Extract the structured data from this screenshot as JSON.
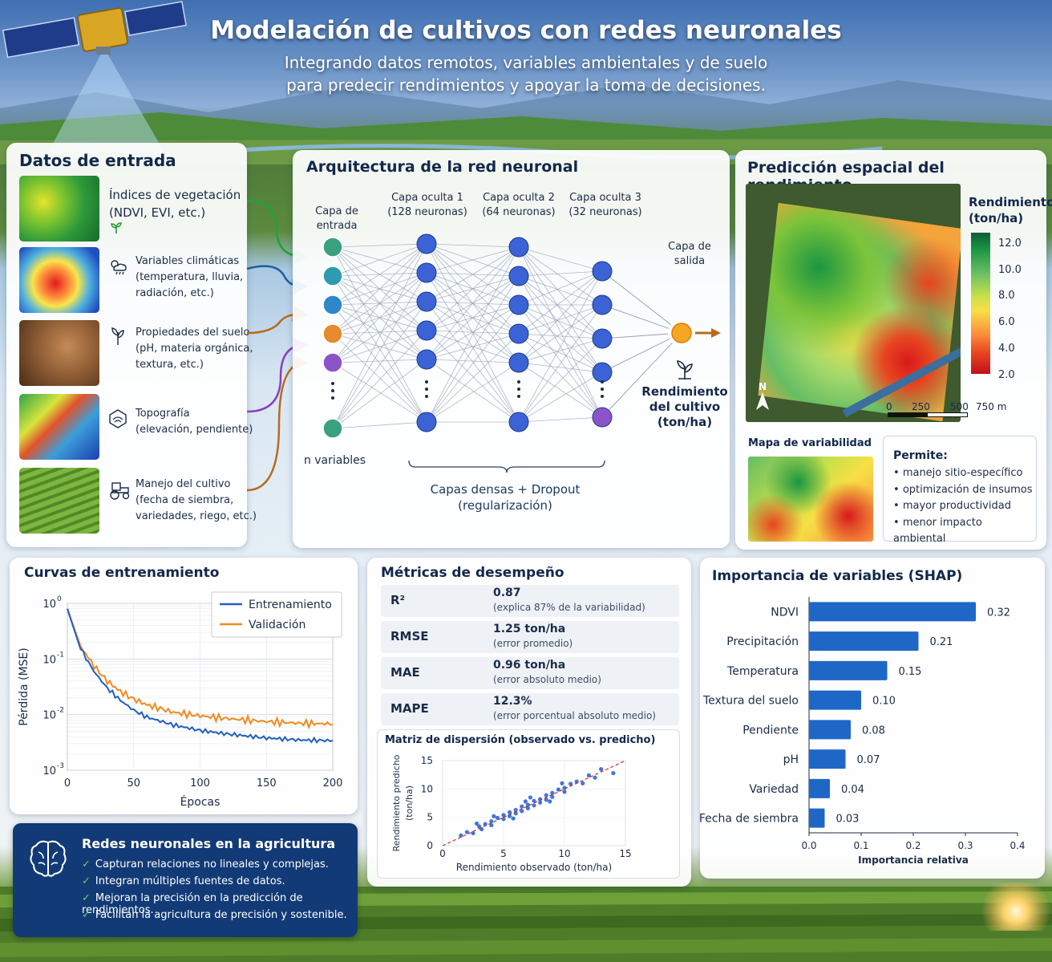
{
  "header": {
    "title": "Modelación de cultivos con redes neuronales",
    "subtitle_line1": "Integrando datos remotos, variables ambientales y de suelo",
    "subtitle_line2": "para predecir rendimientos y apoyar la toma de decisiones."
  },
  "inputs": {
    "title": "Datos de entrada",
    "items": [
      {
        "line1": "Índices de vegetación",
        "line2": "(NDVI, EVI, etc.)",
        "line3": "",
        "icon": "sprout-icon"
      },
      {
        "line1": "Variables climáticas",
        "line2": "(temperatura, lluvia,",
        "line3": "radiación, etc.)",
        "icon": "cloud-sun-rain-icon"
      },
      {
        "line1": "Propiedades del suelo",
        "line2": "(pH, materia orgánica,",
        "line3": "textura, etc.)",
        "icon": "leaf-icon"
      },
      {
        "line1": "Topografía",
        "line2": "(elevación, pendiente)",
        "line3": "",
        "icon": "topography-icon"
      },
      {
        "line1": "Manejo del cultivo",
        "line2": "(fecha de siembra,",
        "line3": "variedades, riego, etc.)",
        "icon": "tractor-icon"
      }
    ]
  },
  "architecture": {
    "title": "Arquitectura de la red neuronal",
    "input_layer_line1": "Capa de",
    "input_layer_line2": "entrada",
    "hidden1_line1": "Capa oculta 1",
    "hidden1_line2": "(128 neuronas)",
    "hidden2_line1": "Capa oculta 2",
    "hidden2_line2": "(64 neuronas)",
    "hidden3_line1": "Capa oculta 3",
    "hidden3_line2": "(32 neuronas)",
    "output_line1": "Capa de",
    "output_line2": "salida",
    "n_variables": "n variables",
    "dense_line1": "Capas densas + Dropout",
    "dense_line2": "(regularización)",
    "result_line1": "Rendimiento",
    "result_line2": "del cultivo",
    "result_line3": "(ton/ha)",
    "colors": {
      "input": [
        "#3aa17e",
        "#2f9bb1",
        "#2f86c9",
        "#e58a2e",
        "#8b55c9"
      ],
      "hidden": "#3b63d6",
      "last_hidden": "#8b55c9",
      "output": "#f5a623"
    }
  },
  "spatial": {
    "title": "Predicción espacial del rendimiento",
    "legend_title_line1": "Rendimiento",
    "legend_title_line2": "(ton/ha)",
    "legend_ticks": [
      "12.0",
      "10.0",
      "8.0",
      "6.0",
      "4.0",
      "2.0"
    ],
    "north": "N",
    "scale_ticks": [
      "0",
      "250",
      "500",
      "750 m"
    ],
    "variability_title": "Mapa de variabilidad",
    "allows_title": "Permite:",
    "allows_items": [
      "manejo sitio-específico",
      "optimización de insumos",
      "mayor productividad",
      "menor impacto ambiental"
    ]
  },
  "training": {
    "title": "Curvas de entrenamiento",
    "legend": [
      "Entrenamiento",
      "Validación"
    ],
    "ylabel": "Pérdida (MSE)",
    "xlabel": "Épocas",
    "xticks": [
      "0",
      "50",
      "100",
      "150",
      "200"
    ],
    "yticks": [
      {
        "base": "10",
        "exp": "0"
      },
      {
        "base": "10",
        "exp": "-1"
      },
      {
        "base": "10",
        "exp": "-2"
      },
      {
        "base": "10",
        "exp": "-3"
      }
    ],
    "colors": {
      "train": "#1f5fbf",
      "val": "#f28a1c"
    }
  },
  "metrics": {
    "title": "Métricas de desempeño",
    "rows": [
      {
        "key": "R²",
        "value": "0.87",
        "desc": "(explica 87% de la variabilidad)"
      },
      {
        "key": "RMSE",
        "value": "1.25 ton/ha",
        "desc": "(error promedio)"
      },
      {
        "key": "MAE",
        "value": "0.96 ton/ha",
        "desc": "(error absoluto medio)"
      },
      {
        "key": "MAPE",
        "value": "12.3%",
        "desc": "(error porcentual absoluto medio)"
      }
    ],
    "scatter_title": "Matriz de dispersión (observado vs. predicho)",
    "scatter_ylabel_line1": "Rendimiento predicho",
    "scatter_ylabel_line2": "(ton/ha)",
    "scatter_xlabel": "Rendimiento observado (ton/ha)",
    "scatter_ticks": [
      "0",
      "5",
      "10",
      "15"
    ]
  },
  "shap": {
    "title": "Importancia de variables (SHAP)",
    "xlabel": "Importancia relativa",
    "xticks": [
      "0.0",
      "0.1",
      "0.2",
      "0.3",
      "0.4"
    ]
  },
  "summary": {
    "title": "Redes neuronales en la agricultura",
    "items": [
      "Capturan relaciones no lineales y complejas.",
      "Integran múltiples fuentes de datos.",
      "Mejoran la precisión en la predicción de rendimientos.",
      "Facilitan la agricultura de precisión y sostenible."
    ]
  },
  "chart_data": [
    {
      "type": "line",
      "title": "Curvas de entrenamiento",
      "xlabel": "Épocas",
      "ylabel": "Pérdida (MSE)",
      "xlim": [
        0,
        200
      ],
      "ylim": [
        0.001,
        1
      ],
      "yscale": "log",
      "legend": "top-right",
      "x": [
        0,
        10,
        20,
        30,
        40,
        50,
        60,
        80,
        100,
        120,
        150,
        175,
        200
      ],
      "series": [
        {
          "name": "Entrenamiento",
          "values": [
            0.8,
            0.15,
            0.06,
            0.03,
            0.018,
            0.012,
            0.009,
            0.0065,
            0.0052,
            0.0045,
            0.0038,
            0.0035,
            0.0034
          ]
        },
        {
          "name": "Validación",
          "values": [
            0.8,
            0.17,
            0.075,
            0.04,
            0.026,
            0.019,
            0.015,
            0.011,
            0.0095,
            0.0085,
            0.0075,
            0.007,
            0.0068
          ]
        }
      ]
    },
    {
      "type": "bar",
      "orientation": "horizontal",
      "title": "Importancia de variables (SHAP)",
      "xlabel": "Importancia relativa",
      "xlim": [
        0,
        0.4
      ],
      "categories": [
        "NDVI",
        "Precipitación",
        "Temperatura",
        "Textura del suelo",
        "Pendiente",
        "pH",
        "Variedad",
        "Fecha de siembra"
      ],
      "values": [
        0.32,
        0.21,
        0.15,
        0.1,
        0.08,
        0.07,
        0.04,
        0.03
      ],
      "value_labels": [
        "0.32",
        "0.21",
        "0.15",
        "0.10",
        "0.08",
        "0.07",
        "0.04",
        "0.03"
      ]
    },
    {
      "type": "scatter",
      "title": "Matriz de dispersión (observado vs. predicho)",
      "xlabel": "Rendimiento observado (ton/ha)",
      "ylabel": "Rendimiento predicho (ton/ha)",
      "xlim": [
        0,
        15
      ],
      "ylim": [
        0,
        15
      ],
      "reference_line": "1:1",
      "points": [
        [
          1.5,
          1.8
        ],
        [
          2,
          2.4
        ],
        [
          2.5,
          2.2
        ],
        [
          3,
          3.4
        ],
        [
          3.2,
          2.9
        ],
        [
          3.5,
          3.8
        ],
        [
          4,
          4.3
        ],
        [
          4,
          3.6
        ],
        [
          4.5,
          4.9
        ],
        [
          5,
          4.7
        ],
        [
          5,
          5.4
        ],
        [
          5.5,
          5.9
        ],
        [
          5.5,
          5.2
        ],
        [
          6,
          6.3
        ],
        [
          6,
          5.7
        ],
        [
          6.5,
          6.9
        ],
        [
          6.5,
          6.1
        ],
        [
          7,
          7.2
        ],
        [
          7,
          6.6
        ],
        [
          7.5,
          7.9
        ],
        [
          7.5,
          7.1
        ],
        [
          8,
          8.2
        ],
        [
          8,
          7.6
        ],
        [
          8.5,
          8.9
        ],
        [
          8.5,
          8.1
        ],
        [
          9,
          9.3
        ],
        [
          9,
          8.6
        ],
        [
          9.5,
          9.9
        ],
        [
          10,
          10.2
        ],
        [
          10,
          9.5
        ],
        [
          10.5,
          10.9
        ],
        [
          11,
          11.3
        ],
        [
          11.5,
          11.0
        ],
        [
          12,
          12.4
        ],
        [
          12.5,
          12.0
        ],
        [
          13,
          13.5
        ],
        [
          14,
          12.8
        ],
        [
          2.8,
          3.9
        ],
        [
          4.2,
          5.2
        ],
        [
          5.8,
          4.8
        ],
        [
          7.2,
          8.5
        ],
        [
          8.8,
          7.8
        ],
        [
          9.8,
          11.0
        ],
        [
          6.8,
          7.8
        ]
      ]
    }
  ]
}
